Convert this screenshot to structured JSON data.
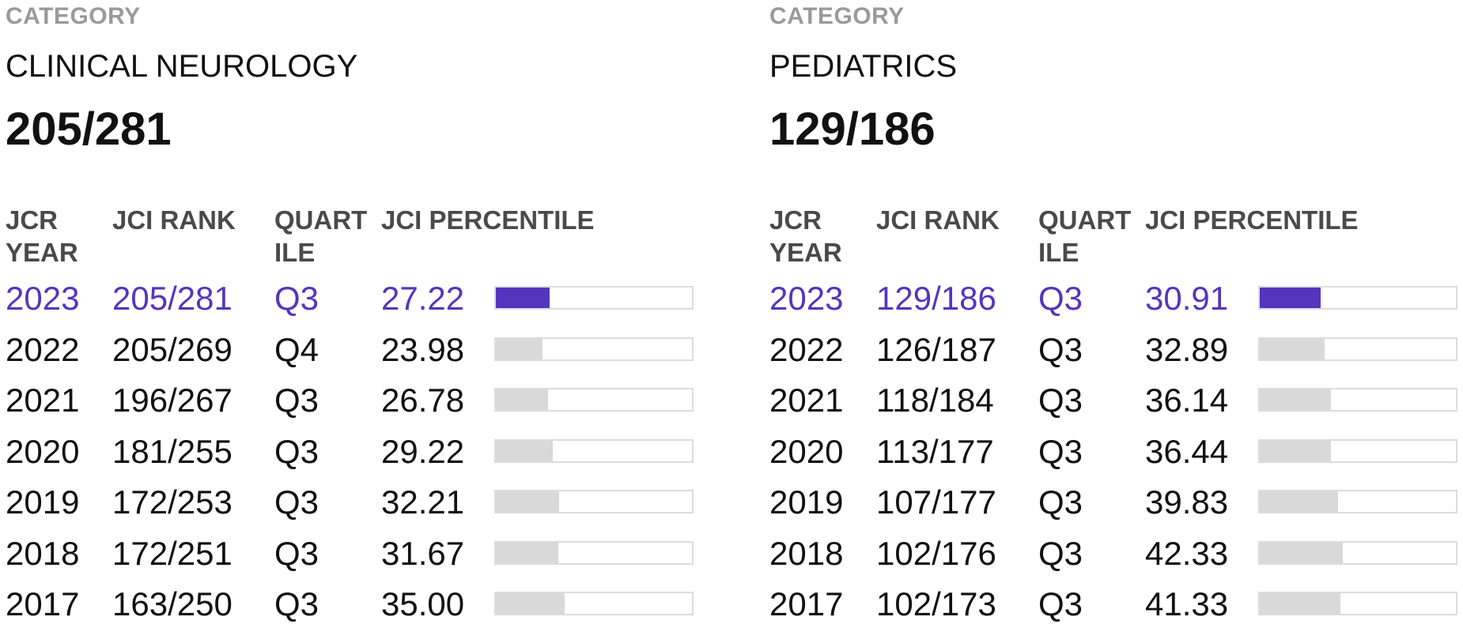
{
  "panels": [
    {
      "category_label": "CATEGORY",
      "category_name": "CLINICAL NEUROLOGY",
      "category_rank": "205/281",
      "columns": {
        "year": "JCR YEAR",
        "rank": "JCI RANK",
        "quartile": "QUART ILE",
        "percentile": "JCI PERCENTILE"
      },
      "rows": [
        {
          "year": "2023",
          "rank": "205/281",
          "quartile": "Q3",
          "percentile": "27.22",
          "percentile_value": 27.22,
          "current": true
        },
        {
          "year": "2022",
          "rank": "205/269",
          "quartile": "Q4",
          "percentile": "23.98",
          "percentile_value": 23.98,
          "current": false
        },
        {
          "year": "2021",
          "rank": "196/267",
          "quartile": "Q3",
          "percentile": "26.78",
          "percentile_value": 26.78,
          "current": false
        },
        {
          "year": "2020",
          "rank": "181/255",
          "quartile": "Q3",
          "percentile": "29.22",
          "percentile_value": 29.22,
          "current": false
        },
        {
          "year": "2019",
          "rank": "172/253",
          "quartile": "Q3",
          "percentile": "32.21",
          "percentile_value": 32.21,
          "current": false
        },
        {
          "year": "2018",
          "rank": "172/251",
          "quartile": "Q3",
          "percentile": "31.67",
          "percentile_value": 31.67,
          "current": false
        },
        {
          "year": "2017",
          "rank": "163/250",
          "quartile": "Q3",
          "percentile": "35.00",
          "percentile_value": 35.0,
          "current": false
        }
      ]
    },
    {
      "category_label": "CATEGORY",
      "category_name": "PEDIATRICS",
      "category_rank": "129/186",
      "columns": {
        "year": "JCR YEAR",
        "rank": "JCI RANK",
        "quartile": "QUART ILE",
        "percentile": "JCI PERCENTILE"
      },
      "rows": [
        {
          "year": "2023",
          "rank": "129/186",
          "quartile": "Q3",
          "percentile": "30.91",
          "percentile_value": 30.91,
          "current": true
        },
        {
          "year": "2022",
          "rank": "126/187",
          "quartile": "Q3",
          "percentile": "32.89",
          "percentile_value": 32.89,
          "current": false
        },
        {
          "year": "2021",
          "rank": "118/184",
          "quartile": "Q3",
          "percentile": "36.14",
          "percentile_value": 36.14,
          "current": false
        },
        {
          "year": "2020",
          "rank": "113/177",
          "quartile": "Q3",
          "percentile": "36.44",
          "percentile_value": 36.44,
          "current": false
        },
        {
          "year": "2019",
          "rank": "107/177",
          "quartile": "Q3",
          "percentile": "39.83",
          "percentile_value": 39.83,
          "current": false
        },
        {
          "year": "2018",
          "rank": "102/176",
          "quartile": "Q3",
          "percentile": "42.33",
          "percentile_value": 42.33,
          "current": false
        },
        {
          "year": "2017",
          "rank": "102/173",
          "quartile": "Q3",
          "percentile": "41.33",
          "percentile_value": 41.33,
          "current": false
        }
      ]
    }
  ],
  "colors": {
    "accent": "#5535bd",
    "bar_inactive": "#d9d9d9",
    "bar_border": "#dcdcdc",
    "label_gray": "#9a9a9a"
  }
}
